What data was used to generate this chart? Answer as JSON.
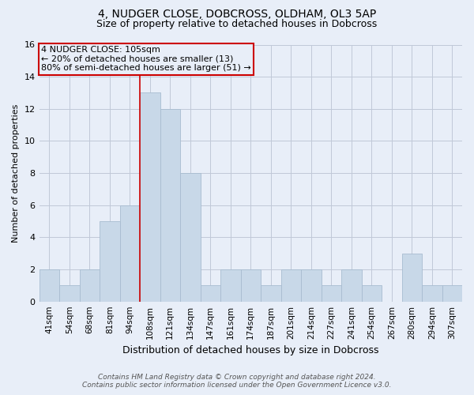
{
  "title1": "4, NUDGER CLOSE, DOBCROSS, OLDHAM, OL3 5AP",
  "title2": "Size of property relative to detached houses in Dobcross",
  "xlabel": "Distribution of detached houses by size in Dobcross",
  "ylabel": "Number of detached properties",
  "categories": [
    "41sqm",
    "54sqm",
    "68sqm",
    "81sqm",
    "94sqm",
    "108sqm",
    "121sqm",
    "134sqm",
    "147sqm",
    "161sqm",
    "174sqm",
    "187sqm",
    "201sqm",
    "214sqm",
    "227sqm",
    "241sqm",
    "254sqm",
    "267sqm",
    "280sqm",
    "294sqm",
    "307sqm"
  ],
  "values": [
    2,
    1,
    2,
    5,
    6,
    13,
    12,
    8,
    1,
    2,
    2,
    1,
    2,
    2,
    1,
    2,
    1,
    0,
    3,
    1,
    1
  ],
  "bar_color": "#c8d8e8",
  "bar_edge_color": "#a8bcd0",
  "vline_x_index": 5,
  "vline_color": "#cc0000",
  "annotation_line1": "4 NUDGER CLOSE: 105sqm",
  "annotation_line2": "← 20% of detached houses are smaller (13)",
  "annotation_line3": "80% of semi-detached houses are larger (51) →",
  "annotation_box_color": "#cc0000",
  "ylim": [
    0,
    16
  ],
  "yticks": [
    0,
    2,
    4,
    6,
    8,
    10,
    12,
    14,
    16
  ],
  "grid_color": "#c0c8d8",
  "bg_color": "#e8eef8",
  "footer": "Contains HM Land Registry data © Crown copyright and database right 2024.\nContains public sector information licensed under the Open Government Licence v3.0.",
  "title1_fontsize": 10,
  "title2_fontsize": 9,
  "xlabel_fontsize": 9,
  "ylabel_fontsize": 8,
  "tick_fontsize": 7.5,
  "annot_fontsize": 8,
  "footer_fontsize": 6.5
}
